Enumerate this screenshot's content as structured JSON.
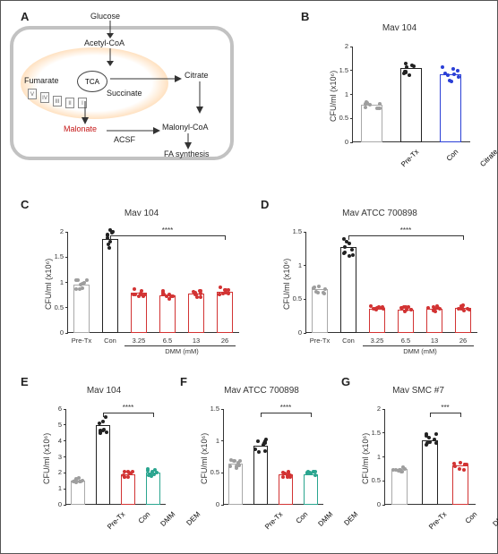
{
  "panels": {
    "A": {
      "label": "A"
    },
    "B": {
      "label": "B",
      "title": "Mav 104",
      "ylabel": "CFU/ml (x10⁶)",
      "yticks": [
        0,
        0.5,
        1.0,
        1.5,
        2.0
      ],
      "ymax": 2.0,
      "bars": [
        {
          "x": "Pre-Tx",
          "val": 0.78,
          "color": "#a9a9a9",
          "dot": "#9e9e9e"
        },
        {
          "x": "Con",
          "val": 1.55,
          "color": "#222222",
          "dot": "#222"
        },
        {
          "x": "Citrate",
          "val": 1.42,
          "color": "#2a3fd6",
          "dot": "#2a3fd6"
        }
      ],
      "xrot": true
    },
    "C": {
      "label": "C",
      "title": "Mav 104",
      "ylabel": "CFU/ml (x10⁶)",
      "yticks": [
        0,
        0.5,
        1.0,
        1.5,
        2.0
      ],
      "ymax": 2.0,
      "bars": [
        {
          "x": "Pre-Tx",
          "val": 0.95,
          "color": "#a9a9a9",
          "dot": "#9e9e9e"
        },
        {
          "x": "Con",
          "val": 1.85,
          "color": "#222",
          "dot": "#222"
        },
        {
          "x": "3.25",
          "val": 0.8,
          "color": "#d23333",
          "dot": "#d23333"
        },
        {
          "x": "6.5",
          "val": 0.75,
          "color": "#d23333",
          "dot": "#d23333"
        },
        {
          "x": "13",
          "val": 0.78,
          "color": "#d23333",
          "dot": "#d23333"
        },
        {
          "x": "26",
          "val": 0.82,
          "color": "#d23333",
          "dot": "#d23333"
        }
      ],
      "sig": "****",
      "xsublabel": "DMM (mM)",
      "xrot": false
    },
    "D": {
      "label": "D",
      "title": "Mav ATCC 700898",
      "ylabel": "CFU/ml (x10⁶)",
      "yticks": [
        0,
        0.5,
        1.0,
        1.5
      ],
      "ymax": 1.5,
      "bars": [
        {
          "x": "Pre-Tx",
          "val": 0.65,
          "color": "#a9a9a9",
          "dot": "#9e9e9e"
        },
        {
          "x": "Con",
          "val": 1.28,
          "color": "#222",
          "dot": "#222"
        },
        {
          "x": "3.25",
          "val": 0.36,
          "color": "#d23333",
          "dot": "#d23333"
        },
        {
          "x": "6.5",
          "val": 0.35,
          "color": "#d23333",
          "dot": "#d23333"
        },
        {
          "x": "13",
          "val": 0.36,
          "color": "#d23333",
          "dot": "#d23333"
        },
        {
          "x": "26",
          "val": 0.37,
          "color": "#d23333",
          "dot": "#d23333"
        }
      ],
      "sig": "****",
      "xsublabel": "DMM (mM)",
      "xrot": false
    },
    "E": {
      "label": "E",
      "title": "Mav 104",
      "ylabel": "CFU/ml (x10⁶)",
      "yticks": [
        0,
        1,
        2,
        3,
        4,
        5,
        6
      ],
      "ymax": 6,
      "bars": [
        {
          "x": "Pre-Tx",
          "val": 1.5,
          "color": "#a9a9a9",
          "dot": "#9e9e9e"
        },
        {
          "x": "Con",
          "val": 5.0,
          "color": "#222",
          "dot": "#222"
        },
        {
          "x": "DMM",
          "val": 1.9,
          "color": "#d23333",
          "dot": "#d23333"
        },
        {
          "x": "DEM",
          "val": 2.0,
          "color": "#2aa58f",
          "dot": "#2aa58f"
        }
      ],
      "sig": "****",
      "xrot": true
    },
    "F": {
      "label": "F",
      "title": "Mav ATCC 700898",
      "ylabel": "CFU/ml (x10⁶)",
      "yticks": [
        0,
        0.5,
        1.0,
        1.5
      ],
      "ymax": 1.5,
      "bars": [
        {
          "x": "Pre-Tx",
          "val": 0.65,
          "color": "#a9a9a9",
          "dot": "#9e9e9e"
        },
        {
          "x": "Con",
          "val": 0.92,
          "color": "#222",
          "dot": "#222"
        },
        {
          "x": "DMM",
          "val": 0.47,
          "color": "#d23333",
          "dot": "#d23333"
        },
        {
          "x": "DEM",
          "val": 0.48,
          "color": "#2aa58f",
          "dot": "#2aa58f"
        }
      ],
      "sig": "****",
      "xrot": true
    },
    "G": {
      "label": "G",
      "title": "Mav SMC #7",
      "ylabel": "CFU/ml (x10⁶)",
      "yticks": [
        0,
        0.5,
        1.0,
        1.5,
        2.0
      ],
      "ymax": 2.0,
      "bars": [
        {
          "x": "Pre-Tx",
          "val": 0.75,
          "color": "#a9a9a9",
          "dot": "#9e9e9e"
        },
        {
          "x": "Con",
          "val": 1.35,
          "color": "#222",
          "dot": "#222"
        },
        {
          "x": "DMM",
          "val": 0.82,
          "color": "#d23333",
          "dot": "#d23333"
        }
      ],
      "sig": "***",
      "xrot": true
    }
  },
  "diagram": {
    "glucose": "Glucose",
    "acoa": "Acetyl-CoA",
    "tca": "TCA",
    "fumarate": "Fumarate",
    "succinate": "Succinate",
    "malonate": "Malonate",
    "acsf": "ACSF",
    "malonyl": "Malonyl-CoA",
    "fa": "FA synthesis",
    "citrate": "Citrate",
    "etc": [
      "V",
      "IV",
      "III",
      "II",
      "I"
    ]
  },
  "style": {
    "grey": "#a9a9a9",
    "black": "#222",
    "red": "#d23333",
    "teal": "#2aa58f",
    "blue": "#2a3fd6",
    "malonate_color": "#c51717"
  }
}
